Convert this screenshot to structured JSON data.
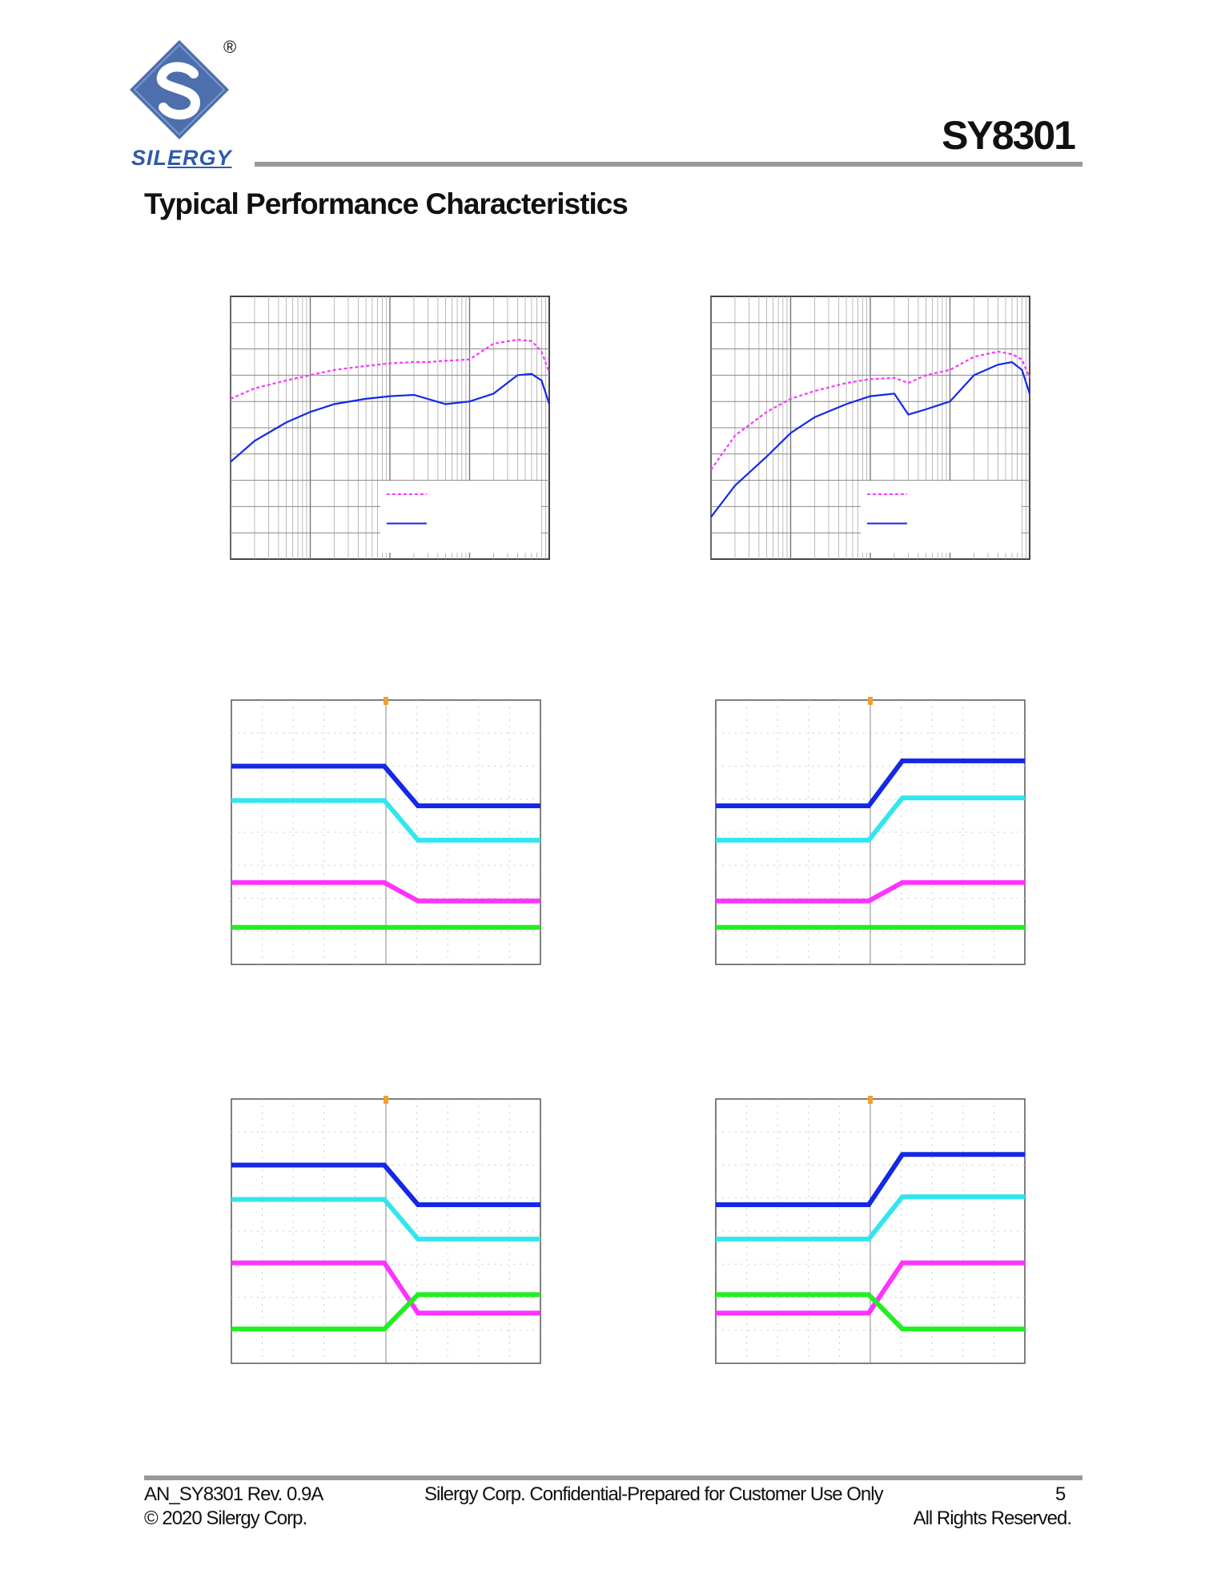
{
  "header": {
    "logo_text_a": "SIL",
    "logo_text_b": "ERGY",
    "registered_mark": "®",
    "part_number": "SY8301"
  },
  "section_title": "Typical Performance Characteristics",
  "footer": {
    "doc_id": "AN_SY8301 Rev. 0.9A",
    "confidential": "Silergy Corp. Confidential-Prepared for Customer Use Only",
    "page_number": "5",
    "copyright": "© 2020 Silergy Corp.",
    "rights": "All Rights Reserved."
  },
  "colors": {
    "rule_gray": "#9a9a9a",
    "logo_blue": "#2f5aa8",
    "trace_blue": "#1428e6",
    "trace_magenta": "#ff33ff",
    "trace_cyan": "#33e6ee",
    "trace_green": "#22ee22",
    "trigger_orange": "#f0a030"
  },
  "chart_data": [
    {
      "type": "line",
      "id": "efficiency-left",
      "xscale": "log",
      "xlim": [
        0.001,
        10
      ],
      "ylim": [
        0,
        100
      ],
      "series": [
        {
          "name": "magenta-dashed",
          "x": [
            0.001,
            0.002,
            0.005,
            0.01,
            0.02,
            0.05,
            0.1,
            0.2,
            0.3,
            0.5,
            1,
            2,
            4,
            6,
            8,
            10
          ],
          "y": [
            61,
            65,
            68,
            70,
            72,
            73.5,
            74.5,
            75,
            75,
            75.5,
            76,
            82,
            83.5,
            83,
            79,
            71
          ]
        },
        {
          "name": "blue-solid",
          "x": [
            0.001,
            0.002,
            0.005,
            0.01,
            0.02,
            0.05,
            0.1,
            0.2,
            0.5,
            1,
            2,
            4,
            6,
            8,
            10
          ],
          "y": [
            37,
            45,
            52,
            56,
            59,
            61,
            62,
            62.5,
            59,
            60,
            63,
            70,
            70.5,
            68,
            59
          ]
        }
      ]
    },
    {
      "type": "line",
      "id": "efficiency-right",
      "xscale": "log",
      "xlim": [
        0.001,
        10
      ],
      "ylim": [
        0,
        100
      ],
      "series": [
        {
          "name": "magenta-dashed",
          "x": [
            0.001,
            0.002,
            0.005,
            0.01,
            0.02,
            0.05,
            0.1,
            0.2,
            0.3,
            0.5,
            1,
            2,
            4,
            6,
            8,
            10
          ],
          "y": [
            34,
            47,
            56,
            61,
            64,
            67,
            68.5,
            69,
            67,
            70,
            72,
            77,
            79,
            78,
            76,
            69
          ]
        },
        {
          "name": "blue-solid",
          "x": [
            0.001,
            0.002,
            0.005,
            0.01,
            0.02,
            0.05,
            0.1,
            0.2,
            0.3,
            0.5,
            1,
            2,
            4,
            6,
            8,
            10
          ],
          "y": [
            16,
            28,
            39,
            48,
            54,
            59,
            62,
            63,
            55,
            57,
            60,
            70,
            74,
            75,
            72,
            63
          ]
        }
      ]
    },
    {
      "type": "scope",
      "id": "scope-1-step-up",
      "traces": [
        {
          "color": "trace_blue",
          "levels": [
            0.75,
            0.6
          ]
        },
        {
          "color": "trace_cyan",
          "levels": [
            0.62,
            0.47
          ]
        },
        {
          "color": "trace_magenta",
          "levels": [
            0.31,
            0.24
          ]
        },
        {
          "color": "trace_green",
          "levels": [
            0.14,
            0.14
          ]
        }
      ]
    },
    {
      "type": "scope",
      "id": "scope-2-step-down",
      "traces": [
        {
          "color": "trace_blue",
          "levels": [
            0.6,
            0.77
          ]
        },
        {
          "color": "trace_cyan",
          "levels": [
            0.47,
            0.63
          ]
        },
        {
          "color": "trace_magenta",
          "levels": [
            0.24,
            0.31
          ]
        },
        {
          "color": "trace_green",
          "levels": [
            0.14,
            0.14
          ]
        }
      ]
    },
    {
      "type": "scope",
      "id": "scope-3-startup",
      "traces": [
        {
          "color": "trace_blue",
          "levels": [
            0.75,
            0.6
          ]
        },
        {
          "color": "trace_cyan",
          "levels": [
            0.62,
            0.47
          ]
        },
        {
          "color": "trace_magenta",
          "levels": [
            0.38,
            0.19
          ]
        },
        {
          "color": "trace_green",
          "levels": [
            0.13,
            0.26
          ]
        }
      ]
    },
    {
      "type": "scope",
      "id": "scope-4-shutdown",
      "traces": [
        {
          "color": "trace_blue",
          "levels": [
            0.6,
            0.79
          ]
        },
        {
          "color": "trace_cyan",
          "levels": [
            0.47,
            0.63
          ]
        },
        {
          "color": "trace_magenta",
          "levels": [
            0.19,
            0.38
          ]
        },
        {
          "color": "trace_green",
          "levels": [
            0.26,
            0.13
          ]
        }
      ]
    }
  ]
}
